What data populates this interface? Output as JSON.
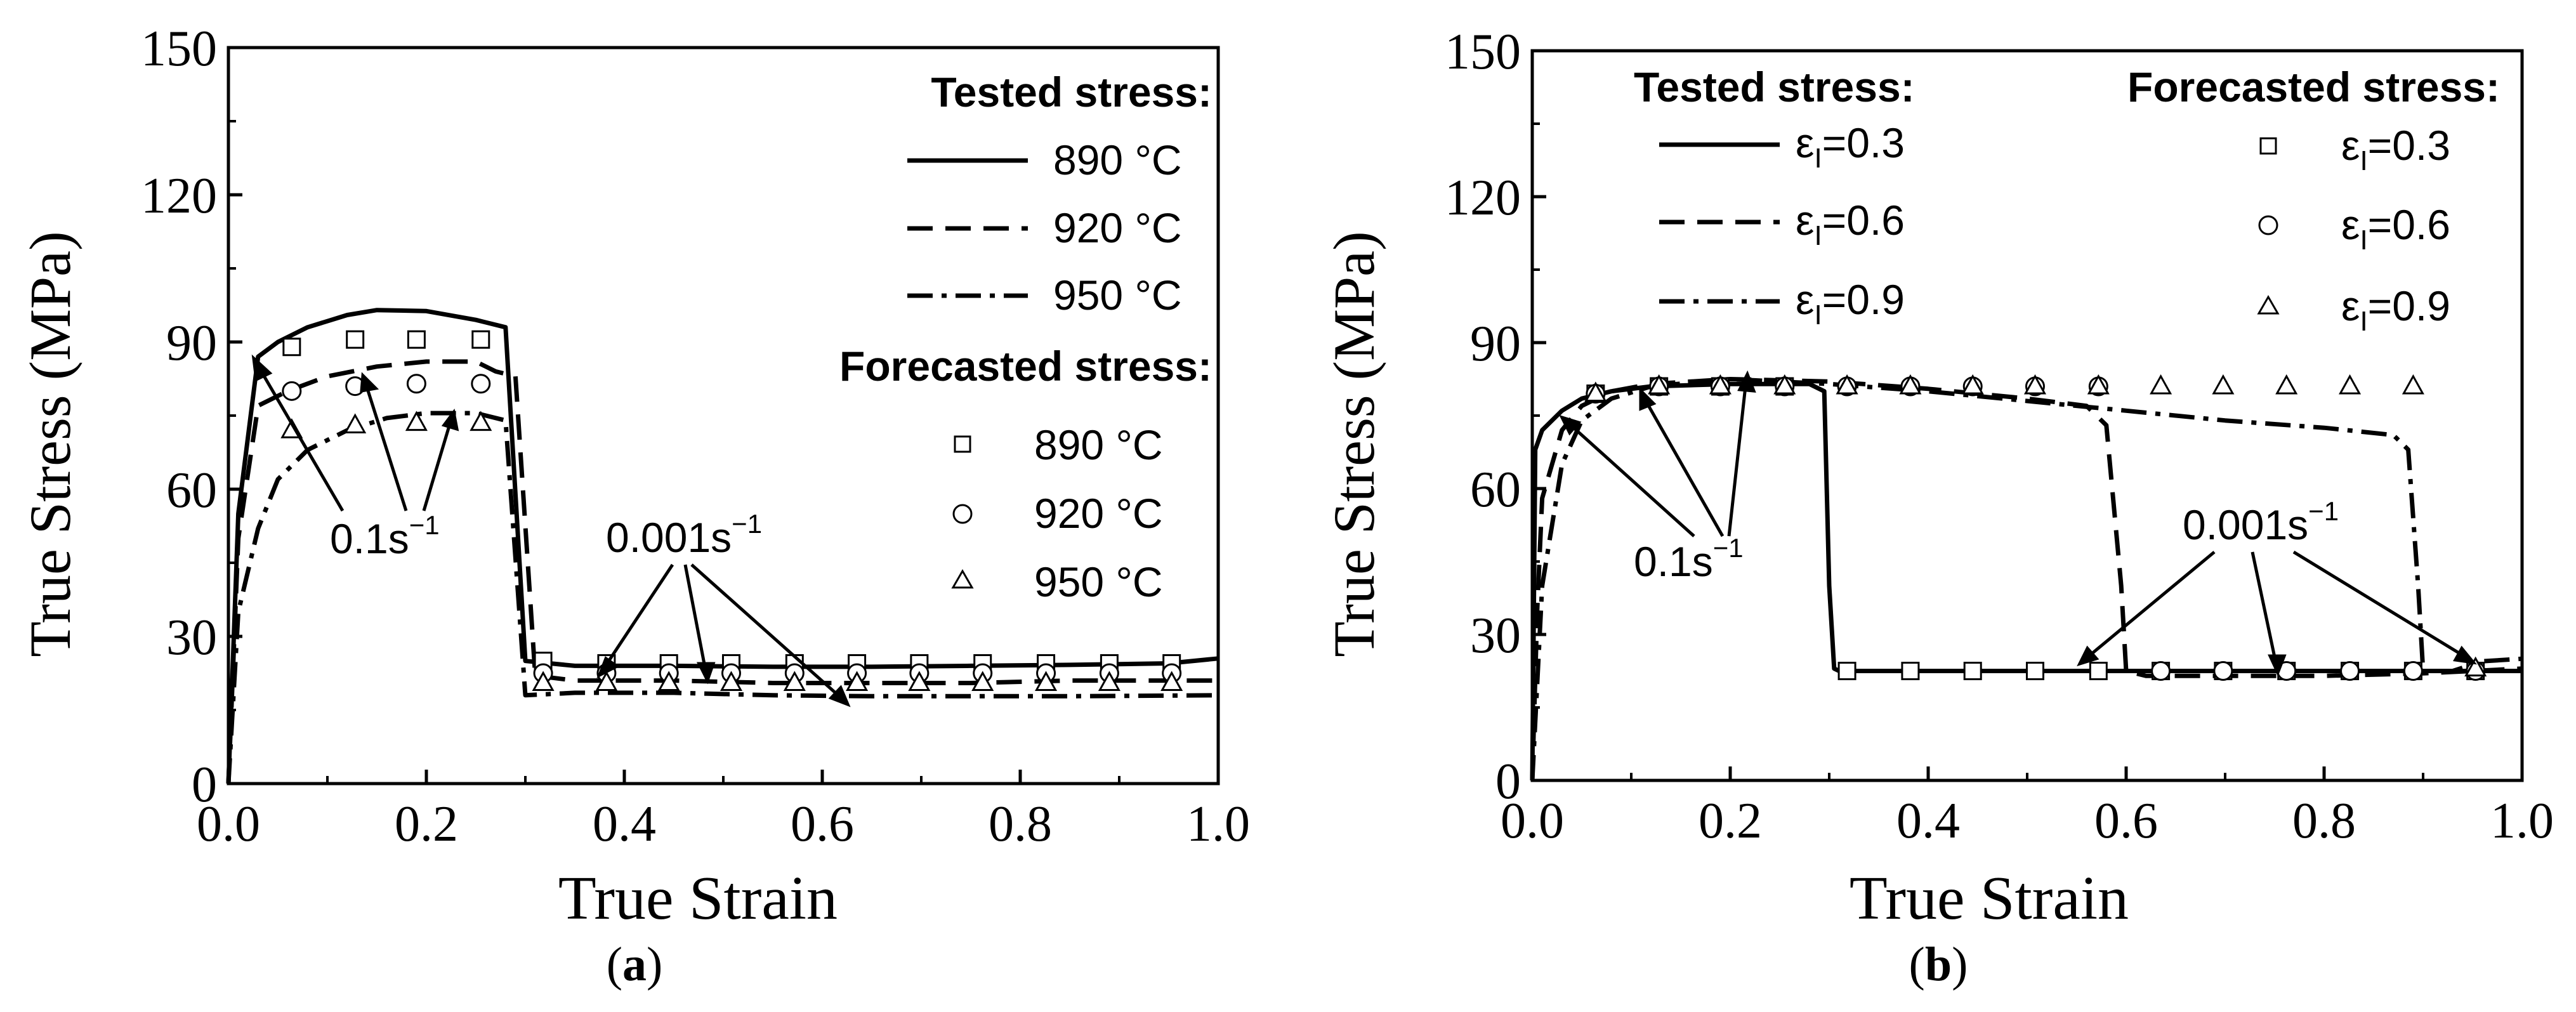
{
  "colors": {
    "ink": "#000000",
    "background": "#ffffff"
  },
  "chart_data": [
    {
      "type": "line",
      "panel_label": "a",
      "xlabel": "True Strain",
      "ylabel": "True Stress (MPa)",
      "xlim": [
        0,
        1.0
      ],
      "ylim": [
        0,
        150
      ],
      "xticks": [
        "0.0",
        "0.2",
        "0.4",
        "0.6",
        "0.8",
        "1.0"
      ],
      "yticks": [
        "0",
        "30",
        "60",
        "90",
        "120",
        "150"
      ],
      "grid": false,
      "legend_tested_title": "Tested stress:",
      "legend_forecast_title": "Forecasted stress:",
      "annotations": [
        {
          "text": "0.1s",
          "sup": "−1"
        },
        {
          "text": "0.001s",
          "sup": "−1"
        }
      ],
      "series": [
        {
          "name": "890 °C",
          "kind": "tested",
          "dash": "solid",
          "points": [
            [
              0,
              0
            ],
            [
              0.01,
              55
            ],
            [
              0.03,
              87
            ],
            [
              0.05,
              90
            ],
            [
              0.08,
              93
            ],
            [
              0.12,
              95.5
            ],
            [
              0.15,
              96.5
            ],
            [
              0.2,
              96.3
            ],
            [
              0.25,
              94.5
            ],
            [
              0.28,
              93
            ],
            [
              0.3,
              25
            ],
            [
              0.35,
              24
            ],
            [
              0.45,
              24
            ],
            [
              0.55,
              23.8
            ],
            [
              0.65,
              23.8
            ],
            [
              0.75,
              24
            ],
            [
              0.85,
              24.2
            ],
            [
              0.95,
              24.5
            ],
            [
              1.0,
              25.5
            ]
          ]
        },
        {
          "name": "920 °C",
          "kind": "tested",
          "dash": "dash",
          "points": [
            [
              0,
              0
            ],
            [
              0.01,
              50
            ],
            [
              0.03,
              77
            ],
            [
              0.06,
              80
            ],
            [
              0.1,
              83
            ],
            [
              0.15,
              85
            ],
            [
              0.2,
              86
            ],
            [
              0.25,
              86
            ],
            [
              0.27,
              84
            ],
            [
              0.29,
              83
            ],
            [
              0.31,
              22
            ],
            [
              0.35,
              21
            ],
            [
              0.45,
              21
            ],
            [
              0.55,
              20.5
            ],
            [
              0.65,
              20.5
            ],
            [
              0.75,
              20.5
            ],
            [
              0.85,
              21
            ],
            [
              1.0,
              21
            ]
          ]
        },
        {
          "name": "950 °C",
          "kind": "tested",
          "dash": "dashdot",
          "points": [
            [
              0,
              0
            ],
            [
              0.01,
              35
            ],
            [
              0.03,
              52
            ],
            [
              0.05,
              62
            ],
            [
              0.08,
              68
            ],
            [
              0.12,
              72
            ],
            [
              0.16,
              74.5
            ],
            [
              0.2,
              75.5
            ],
            [
              0.25,
              75.5
            ],
            [
              0.28,
              74
            ],
            [
              0.3,
              18
            ],
            [
              0.35,
              18.5
            ],
            [
              0.45,
              18.5
            ],
            [
              0.55,
              18
            ],
            [
              0.65,
              17.8
            ],
            [
              0.75,
              17.8
            ],
            [
              0.85,
              17.8
            ],
            [
              1.0,
              18
            ]
          ]
        },
        {
          "name": "890 °C",
          "kind": "forecasted",
          "marker": "square",
          "points": [
            [
              0.064,
              89
            ],
            [
              0.128,
              90.5
            ],
            [
              0.19,
              90.5
            ],
            [
              0.255,
              90.5
            ],
            [
              0.318,
              25
            ],
            [
              0.382,
              24.5
            ],
            [
              0.445,
              24.5
            ],
            [
              0.508,
              24.5
            ],
            [
              0.572,
              24.5
            ],
            [
              0.635,
              24.5
            ],
            [
              0.698,
              24.5
            ],
            [
              0.762,
              24.5
            ],
            [
              0.826,
              24.5
            ],
            [
              0.89,
              24.5
            ],
            [
              0.953,
              24.5
            ]
          ]
        },
        {
          "name": "920 °C",
          "kind": "forecasted",
          "marker": "circle",
          "points": [
            [
              0.064,
              80
            ],
            [
              0.128,
              81
            ],
            [
              0.19,
              81.5
            ],
            [
              0.255,
              81.5
            ],
            [
              0.318,
              22.5
            ],
            [
              0.382,
              22.5
            ],
            [
              0.445,
              22.5
            ],
            [
              0.508,
              22.5
            ],
            [
              0.572,
              22.5
            ],
            [
              0.635,
              22.5
            ],
            [
              0.698,
              22.5
            ],
            [
              0.762,
              22.5
            ],
            [
              0.826,
              22.5
            ],
            [
              0.89,
              22.5
            ],
            [
              0.953,
              22.5
            ]
          ]
        },
        {
          "name": "950 °C",
          "kind": "forecasted",
          "marker": "triangle",
          "points": [
            [
              0.064,
              72
            ],
            [
              0.128,
              73
            ],
            [
              0.19,
              73.5
            ],
            [
              0.255,
              73.5
            ],
            [
              0.318,
              20.5
            ],
            [
              0.382,
              20.5
            ],
            [
              0.445,
              20.5
            ],
            [
              0.508,
              20.5
            ],
            [
              0.572,
              20.5
            ],
            [
              0.635,
              20.5
            ],
            [
              0.698,
              20.5
            ],
            [
              0.762,
              20.5
            ],
            [
              0.826,
              20.5
            ],
            [
              0.89,
              20.5
            ],
            [
              0.953,
              20.5
            ]
          ]
        }
      ]
    },
    {
      "type": "line",
      "panel_label": "b",
      "xlabel": "True Strain",
      "ylabel": "True Stress (MPa)",
      "xlim": [
        0,
        1.0
      ],
      "ylim": [
        0,
        150
      ],
      "xticks": [
        "0.0",
        "0.2",
        "0.4",
        "0.6",
        "0.8",
        "1.0"
      ],
      "yticks": [
        "0",
        "30",
        "60",
        "90",
        "120",
        "150"
      ],
      "grid": false,
      "legend_tested_title": "Tested stress:",
      "legend_forecast_title": "Forecasted stress:",
      "annotations": [
        {
          "text": "0.1s",
          "sup": "−1"
        },
        {
          "text": "0.001s",
          "sup": "−1"
        }
      ],
      "series": [
        {
          "name": "εI=0.3",
          "symbol": "ε",
          "sub": "I",
          "value": "=0.3",
          "kind": "tested",
          "dash": "solid",
          "points": [
            [
              0,
              0
            ],
            [
              0.003,
              68
            ],
            [
              0.01,
              72
            ],
            [
              0.03,
              76
            ],
            [
              0.05,
              78.5
            ],
            [
              0.08,
              80
            ],
            [
              0.12,
              81
            ],
            [
              0.2,
              81.5
            ],
            [
              0.28,
              81.5
            ],
            [
              0.295,
              80
            ],
            [
              0.3,
              40
            ],
            [
              0.305,
              23
            ],
            [
              0.31,
              22.5
            ],
            [
              0.4,
              22.5
            ],
            [
              0.5,
              22.5
            ],
            [
              0.6,
              22.5
            ],
            [
              0.7,
              22.5
            ],
            [
              0.8,
              22.5
            ],
            [
              0.9,
              22.5
            ],
            [
              1.0,
              22.5
            ]
          ]
        },
        {
          "name": "εI=0.6",
          "symbol": "ε",
          "sub": "I",
          "value": "=0.6",
          "kind": "tested",
          "dash": "dash",
          "points": [
            [
              0,
              0
            ],
            [
              0.005,
              35
            ],
            [
              0.01,
              58
            ],
            [
              0.03,
              72
            ],
            [
              0.05,
              77
            ],
            [
              0.08,
              80
            ],
            [
              0.12,
              81.5
            ],
            [
              0.2,
              82.5
            ],
            [
              0.3,
              82
            ],
            [
              0.4,
              80.5
            ],
            [
              0.5,
              78.5
            ],
            [
              0.56,
              77
            ],
            [
              0.58,
              73
            ],
            [
              0.595,
              40
            ],
            [
              0.6,
              22.5
            ],
            [
              0.62,
              21.5
            ],
            [
              0.7,
              21.5
            ],
            [
              0.8,
              21.5
            ],
            [
              0.9,
              22
            ],
            [
              1.0,
              23
            ]
          ]
        },
        {
          "name": "εI=0.9",
          "symbol": "ε",
          "sub": "I",
          "value": "=0.9",
          "kind": "tested",
          "dash": "dashdot",
          "points": [
            [
              0,
              0
            ],
            [
              0.005,
              20
            ],
            [
              0.01,
              40
            ],
            [
              0.03,
              65
            ],
            [
              0.05,
              74
            ],
            [
              0.08,
              78.5
            ],
            [
              0.12,
              81
            ],
            [
              0.2,
              82.5
            ],
            [
              0.3,
              81.5
            ],
            [
              0.4,
              80
            ],
            [
              0.5,
              78
            ],
            [
              0.6,
              76
            ],
            [
              0.7,
              74
            ],
            [
              0.8,
              72.5
            ],
            [
              0.87,
              71
            ],
            [
              0.885,
              68
            ],
            [
              0.895,
              40
            ],
            [
              0.9,
              22.5
            ],
            [
              0.93,
              22.5
            ],
            [
              0.96,
              24.5
            ],
            [
              1.0,
              25
            ]
          ]
        },
        {
          "name": "εI=0.3",
          "symbol": "ε",
          "sub": "I",
          "value": "=0.3",
          "kind": "forecasted",
          "marker": "square",
          "points": [
            [
              0.064,
              79.5
            ],
            [
              0.128,
              81
            ],
            [
              0.19,
              81
            ],
            [
              0.255,
              81
            ],
            [
              0.318,
              22.5
            ],
            [
              0.382,
              22.5
            ],
            [
              0.445,
              22.5
            ],
            [
              0.508,
              22.5
            ],
            [
              0.572,
              22.5
            ],
            [
              0.635,
              22.5
            ],
            [
              0.698,
              22.5
            ],
            [
              0.762,
              22.5
            ],
            [
              0.826,
              22.5
            ],
            [
              0.89,
              22.5
            ],
            [
              0.953,
              22.5
            ]
          ]
        },
        {
          "name": "εI=0.6",
          "symbol": "ε",
          "sub": "I",
          "value": "=0.6",
          "kind": "forecasted",
          "marker": "circle",
          "points": [
            [
              0.064,
              79.5
            ],
            [
              0.128,
              81
            ],
            [
              0.19,
              81
            ],
            [
              0.255,
              81
            ],
            [
              0.318,
              81
            ],
            [
              0.382,
              81
            ],
            [
              0.445,
              81
            ],
            [
              0.508,
              81
            ],
            [
              0.572,
              81
            ],
            [
              0.635,
              22.5
            ],
            [
              0.698,
              22.5
            ],
            [
              0.762,
              22.5
            ],
            [
              0.826,
              22.5
            ],
            [
              0.89,
              22.5
            ],
            [
              0.953,
              22.5
            ]
          ]
        },
        {
          "name": "εI=0.9",
          "symbol": "ε",
          "sub": "I",
          "value": "=0.9",
          "kind": "forecasted",
          "marker": "triangle",
          "points": [
            [
              0.064,
              79.5
            ],
            [
              0.128,
              81
            ],
            [
              0.19,
              81
            ],
            [
              0.255,
              81
            ],
            [
              0.318,
              81
            ],
            [
              0.382,
              81
            ],
            [
              0.445,
              81
            ],
            [
              0.508,
              81
            ],
            [
              0.572,
              81
            ],
            [
              0.635,
              81
            ],
            [
              0.698,
              81
            ],
            [
              0.762,
              81
            ],
            [
              0.826,
              81
            ],
            [
              0.89,
              81
            ],
            [
              0.953,
              23
            ]
          ]
        }
      ]
    }
  ]
}
